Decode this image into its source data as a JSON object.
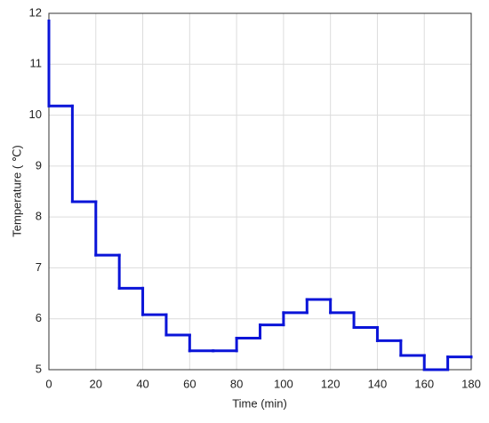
{
  "chart_data": {
    "type": "line",
    "step": "post",
    "xlabel": "Time (min)",
    "ylabel": "Temperature ( ℃)",
    "x": [
      0,
      0,
      10,
      20,
      30,
      40,
      50,
      60,
      70,
      80,
      90,
      100,
      110,
      120,
      130,
      140,
      150,
      160,
      170,
      180
    ],
    "series": [
      {
        "color": "#0a14d8",
        "values": [
          11.85,
          10.18,
          8.3,
          7.25,
          6.6,
          6.08,
          5.68,
          5.37,
          5.37,
          5.62,
          5.88,
          6.12,
          6.38,
          6.12,
          5.83,
          5.57,
          5.28,
          5.0,
          5.25,
          5.25
        ]
      }
    ],
    "xlim": [
      0,
      180
    ],
    "xticks": [
      0,
      20,
      40,
      60,
      80,
      100,
      120,
      140,
      160,
      180
    ],
    "ylim": [
      5,
      12
    ],
    "yticks": [
      5,
      6,
      7,
      8,
      9,
      10,
      11,
      12
    ],
    "grid": true
  }
}
